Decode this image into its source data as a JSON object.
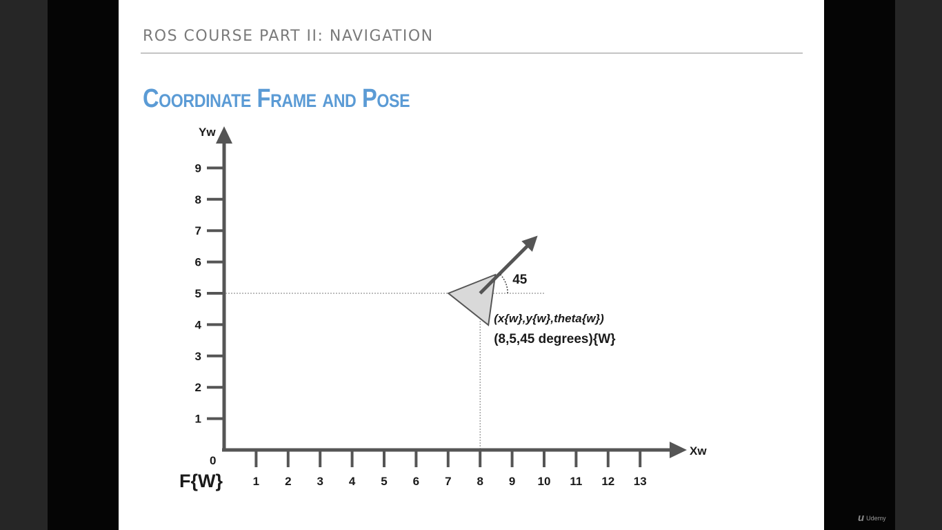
{
  "header": {
    "course": "ROS COURSE PART II: NAVIGATION"
  },
  "slide": {
    "title": "Coordinate Frame and Pose"
  },
  "diagram": {
    "frame_label": "F{W}",
    "y_axis_label": "Yw",
    "x_axis_label": "Xw",
    "origin_label": "0",
    "x_ticks": [
      "1",
      "2",
      "3",
      "4",
      "5",
      "6",
      "7",
      "8",
      "9",
      "10",
      "11",
      "12",
      "13"
    ],
    "y_ticks": [
      "1",
      "2",
      "3",
      "4",
      "5",
      "6",
      "7",
      "8",
      "9"
    ],
    "robot": {
      "x": 8,
      "y": 5,
      "theta_deg": 45
    },
    "angle_label": "45",
    "pose_symbolic": "(x{w},y{w},theta{w})",
    "pose_values": "(8,5,45 degrees){W}",
    "colors": {
      "axis": "#555555",
      "robot_fill": "#d9d9d9",
      "robot_stroke": "#555555",
      "guide": "#777777",
      "text": "#1a1a1a"
    }
  },
  "watermark": {
    "logo_icon": "udemy-logo-icon",
    "text": "Udemy"
  }
}
